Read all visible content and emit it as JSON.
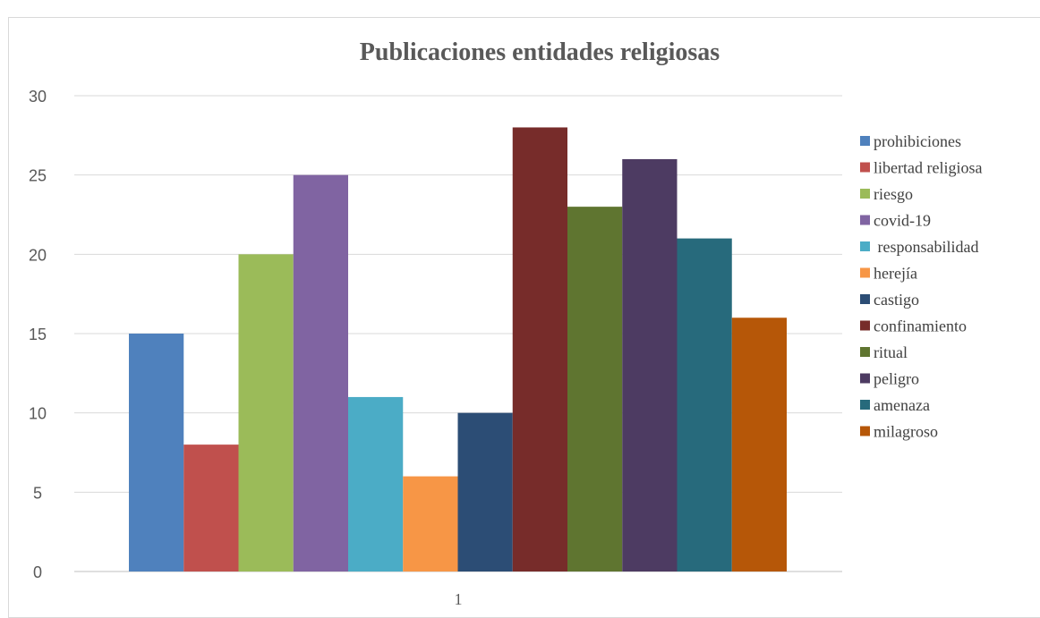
{
  "chart_data": {
    "type": "bar",
    "title": "Publicaciones entidades religiosas",
    "categories": [
      "1"
    ],
    "xlabel": "",
    "ylabel": "",
    "ylim": [
      0,
      30
    ],
    "yticks": [
      0,
      5,
      10,
      15,
      20,
      25,
      30
    ],
    "grid": true,
    "legend_position": "right",
    "series": [
      {
        "name": "prohibiciones",
        "values": [
          15
        ],
        "color": "#4f81bd"
      },
      {
        "name": "libertad religiosa",
        "values": [
          8
        ],
        "color": "#c0504d"
      },
      {
        "name": "riesgo",
        "values": [
          20
        ],
        "color": "#9bbb59"
      },
      {
        "name": "covid-19",
        "values": [
          25
        ],
        "color": "#8064a2"
      },
      {
        "name": " responsabilidad",
        "values": [
          11
        ],
        "color": "#4bacc6"
      },
      {
        "name": "herejía",
        "values": [
          6
        ],
        "color": "#f79646"
      },
      {
        "name": "castigo",
        "values": [
          10
        ],
        "color": "#2c4d75"
      },
      {
        "name": "confinamiento",
        "values": [
          28
        ],
        "color": "#772c2a"
      },
      {
        "name": "ritual",
        "values": [
          23
        ],
        "color": "#5f7530"
      },
      {
        "name": "peligro",
        "values": [
          26
        ],
        "color": "#4d3b62"
      },
      {
        "name": "amenaza",
        "values": [
          21
        ],
        "color": "#276a7c"
      },
      {
        "name": "milagroso",
        "values": [
          16
        ],
        "color": "#b65708"
      }
    ]
  }
}
